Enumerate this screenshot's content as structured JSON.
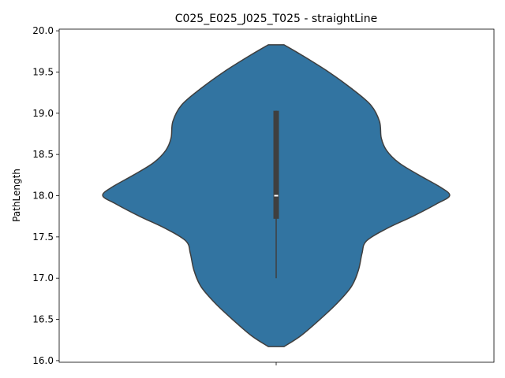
{
  "chart_data": {
    "type": "violin",
    "title": "C025_E025_J025_T025 - straightLine",
    "xlabel": "",
    "ylabel": "PathLength",
    "ylim": [
      15.98,
      20.02
    ],
    "yticks": [
      16.0,
      16.5,
      17.0,
      17.5,
      18.0,
      18.5,
      19.0,
      19.5,
      20.0
    ],
    "ytick_labels": [
      "16.0",
      "16.5",
      "17.0",
      "17.5",
      "18.0",
      "18.5",
      "19.0",
      "19.5",
      "20.0"
    ],
    "grid": false,
    "legend": "none",
    "violin_color": "#3274a1",
    "edge_color": "#3f3f3f",
    "box_color": "#3f3f3f",
    "median_color": "#ffffff",
    "violin": {
      "y_min": 16.17,
      "y_max": 19.83,
      "profile": [
        [
          16.17,
          0.09
        ],
        [
          16.3,
          0.28
        ],
        [
          16.5,
          0.5
        ],
        [
          16.7,
          0.7
        ],
        [
          16.9,
          0.86
        ],
        [
          17.1,
          0.94
        ],
        [
          17.3,
          0.98
        ],
        [
          17.45,
          1.03
        ],
        [
          17.6,
          1.26
        ],
        [
          17.75,
          1.56
        ],
        [
          17.9,
          1.83
        ],
        [
          18.0,
          1.98
        ],
        [
          18.1,
          1.88
        ],
        [
          18.25,
          1.63
        ],
        [
          18.4,
          1.4
        ],
        [
          18.55,
          1.26
        ],
        [
          18.7,
          1.2
        ],
        [
          18.9,
          1.18
        ],
        [
          19.1,
          1.08
        ],
        [
          19.3,
          0.86
        ],
        [
          19.5,
          0.6
        ],
        [
          19.7,
          0.3
        ],
        [
          19.83,
          0.09
        ]
      ]
    },
    "box": {
      "q1": 17.72,
      "median": 18.0,
      "q3": 19.03,
      "whisker_low": 17.0,
      "whisker_high": 19.03
    }
  }
}
